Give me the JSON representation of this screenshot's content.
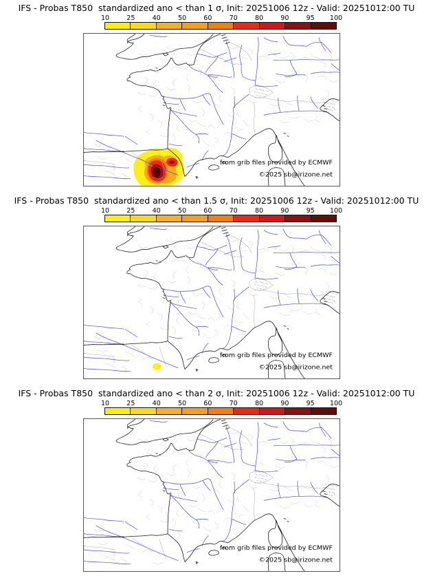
{
  "page": {
    "background": "#ffffff"
  },
  "colorbar": {
    "ticks": [
      "10",
      "25",
      "40",
      "50",
      "60",
      "70",
      "80",
      "90",
      "95",
      "100"
    ],
    "colors": [
      "#FCF005",
      "#FBDC12",
      "#FBAE22",
      "#FA9D17",
      "#F87E0C",
      "#F3260F",
      "#DB1217",
      "#8D1113",
      "#630D0A"
    ]
  },
  "attribution": {
    "line1": "from grib files provided by ECMWF",
    "line2": "©2025 sb@irizone.net"
  },
  "panels": [
    {
      "threshold_sigma": "1",
      "title": "IFS - Probas T850  standardized ano < than 1 σ, Init: 20251006 12z - Valid: 20251012:00 TU"
    },
    {
      "threshold_sigma": "1.5",
      "title": "IFS - Probas T850  standardized ano < than 1.5 σ, Init: 20251006 12z - Valid: 20251012:00 TU"
    },
    {
      "threshold_sigma": "2",
      "title": "IFS - Probas T850  standardized ano < than 2 σ, Init: 20251006 12z - Valid: 20251012:00 TU"
    }
  ],
  "chart_data": [
    {
      "type": "heatmap",
      "title": "IFS - Probas T850 standardized ano < than 1 σ",
      "init": "20251006 12z",
      "valid": "20251012:00 TU",
      "region": "France and surrounding western Europe",
      "colorbar_percent_levels": [
        10,
        25,
        40,
        50,
        60,
        70,
        80,
        90,
        95,
        100
      ],
      "colorbar_colors": [
        "#FCF005",
        "#FBDC12",
        "#FBAE22",
        "#FA9D17",
        "#F87E0C",
        "#F3260F",
        "#DB1217",
        "#8D1113",
        "#630D0A"
      ],
      "legend_position": "top",
      "hotspots": [
        {
          "area": "northeast Spain / eastern Pyrenees (Catalonia)",
          "max_probability_percent": 100
        }
      ]
    },
    {
      "type": "heatmap",
      "title": "IFS - Probas T850 standardized ano < than 1.5 σ",
      "init": "20251006 12z",
      "valid": "20251012:00 TU",
      "region": "France and surrounding western Europe",
      "colorbar_percent_levels": [
        10,
        25,
        40,
        50,
        60,
        70,
        80,
        90,
        95,
        100
      ],
      "colorbar_colors": [
        "#FCF005",
        "#FBDC12",
        "#FBAE22",
        "#FA9D17",
        "#F87E0C",
        "#F3260F",
        "#DB1217",
        "#8D1113",
        "#630D0A"
      ],
      "legend_position": "top",
      "hotspots": [
        {
          "area": "small spot over northeast Spain",
          "max_probability_percent": 25
        }
      ]
    },
    {
      "type": "heatmap",
      "title": "IFS - Probas T850 standardized ano < than 2 σ",
      "init": "20251006 12z",
      "valid": "20251012:00 TU",
      "region": "France and surrounding western Europe",
      "colorbar_percent_levels": [
        10,
        25,
        40,
        50,
        60,
        70,
        80,
        90,
        95,
        100
      ],
      "colorbar_colors": [
        "#FCF005",
        "#FBDC12",
        "#FBAE22",
        "#FA9D17",
        "#F87E0C",
        "#F3260F",
        "#DB1217",
        "#8D1113",
        "#630D0A"
      ],
      "legend_position": "top",
      "hotspots": []
    }
  ]
}
